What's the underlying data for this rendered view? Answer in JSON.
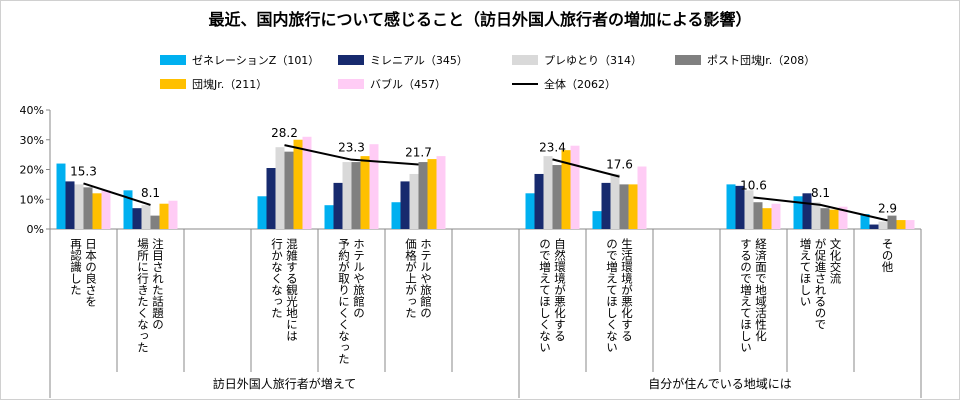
{
  "chart_data": {
    "type": "bar",
    "title": "最近、国内旅行について感じること（訪日外国人旅行者の増加による影響）",
    "categories": [
      [
        "日本の良さを",
        "再認識した"
      ],
      [
        "注目された話題の",
        "場所に行きたくなった"
      ],
      null,
      [
        "混雑する観光地には",
        "行かなくなった"
      ],
      [
        "ホテルや旅館の",
        "予約が取りにくくなった"
      ],
      [
        "ホテルや旅館の",
        "価格が上がった"
      ],
      null,
      [
        "自然環境が悪化する",
        "ので増えてほしくない"
      ],
      [
        "生活環境が悪化する",
        "ので増えてほしくない"
      ],
      null,
      [
        "経済面で地域活性化",
        "するので増えてほしい"
      ],
      [
        "文化交流",
        "が促進されるので",
        "増えてほしい"
      ],
      [
        "その他"
      ]
    ],
    "group_labels": [
      "訪日外国人旅行者が増えて",
      "自分が住んでいる地域には"
    ],
    "series": [
      {
        "name": "ゼネレーションZ（101）",
        "color": "#00b0f0",
        "values": [
          22,
          13,
          null,
          11,
          8,
          9,
          null,
          12,
          6,
          null,
          15,
          11,
          5
        ]
      },
      {
        "name": "ミレニアル（345）",
        "color": "#172a6e",
        "values": [
          16,
          7,
          null,
          20.5,
          15.5,
          16,
          null,
          18.5,
          15.5,
          null,
          14.5,
          12,
          1.5
        ]
      },
      {
        "name": "プレゆとり（314）",
        "color": "#d9d9d9",
        "values": [
          15,
          8,
          null,
          27.5,
          22.5,
          18.5,
          null,
          24.5,
          18.5,
          null,
          13,
          9,
          2.5
        ]
      },
      {
        "name": "ポスト団塊Jr.（208）",
        "color": "#808080",
        "values": [
          14,
          4.5,
          null,
          26,
          22.5,
          22.5,
          null,
          21.5,
          15,
          null,
          9,
          7,
          4.5
        ]
      },
      {
        "name": "団塊Jr.（211）",
        "color": "#ffc000",
        "values": [
          12,
          8.5,
          null,
          30,
          24.5,
          23.5,
          null,
          26.5,
          15,
          null,
          7,
          6.5,
          3
        ]
      },
      {
        "name": "バブル（457）",
        "color": "#ffccf5",
        "values": [
          13,
          9.5,
          null,
          31,
          28.5,
          24.5,
          null,
          28,
          21,
          null,
          8.5,
          7.5,
          3
        ]
      },
      {
        "name": "全体（2062）",
        "type": "line",
        "color": "#000000",
        "values": [
          15.3,
          8.1,
          null,
          28.2,
          23.3,
          21.7,
          null,
          23.4,
          17.6,
          null,
          10.6,
          8.1,
          2.9
        ]
      }
    ],
    "ylim": [
      0,
      40
    ],
    "yticks": [
      {
        "value": 0,
        "label": "0%"
      },
      {
        "value": 10,
        "label": "10%"
      },
      {
        "value": 20,
        "label": "20%"
      },
      {
        "value": 30,
        "label": "30%"
      },
      {
        "value": 40,
        "label": "40%"
      }
    ],
    "grid": false
  }
}
